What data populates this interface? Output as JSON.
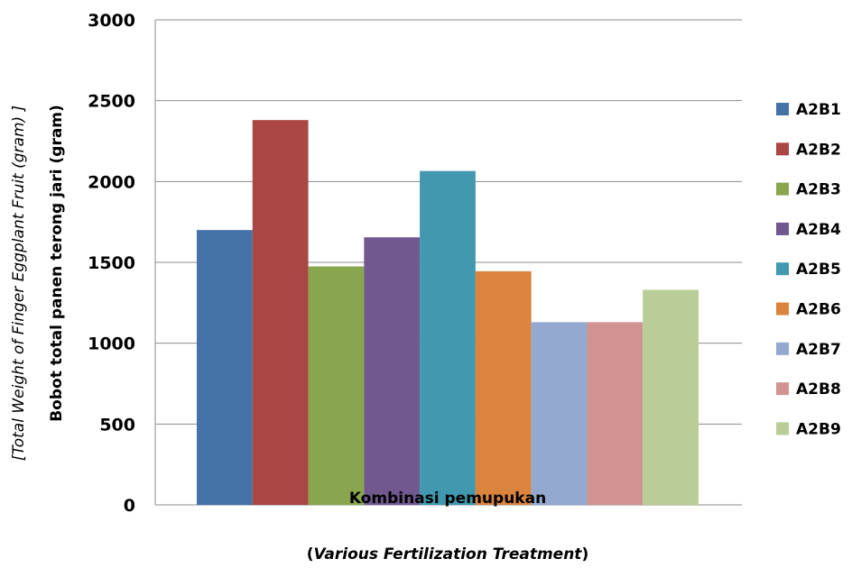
{
  "chart_data": {
    "type": "bar",
    "categories": [
      ""
    ],
    "series": [
      {
        "name": "A2B1",
        "values": [
          1700
        ],
        "color": "#4572A7"
      },
      {
        "name": "A2B2",
        "values": [
          2380
        ],
        "color": "#AA4643"
      },
      {
        "name": "A2B3",
        "values": [
          1475
        ],
        "color": "#89A54E"
      },
      {
        "name": "A2B4",
        "values": [
          1655
        ],
        "color": "#71588F"
      },
      {
        "name": "A2B5",
        "values": [
          2065
        ],
        "color": "#4198AF"
      },
      {
        "name": "A2B6",
        "values": [
          1445
        ],
        "color": "#DB843D"
      },
      {
        "name": "A2B7",
        "values": [
          1130
        ],
        "color": "#93A9CF"
      },
      {
        "name": "A2B8",
        "values": [
          1130
        ],
        "color": "#D19392"
      },
      {
        "name": "A2B9",
        "values": [
          1330
        ],
        "color": "#B9CD96"
      }
    ],
    "xlabel": "Kombinasi pemupukan",
    "xlabel_sub_prefix": "(",
    "xlabel_sub_italic": "Various Fertilization Treatment",
    "xlabel_sub_suffix": ")",
    "ylabel": "Bobot total panen terong jari (gram)",
    "ylabel_sub": "[Total Weight of Finger Eggplant Fruit (gram) ]",
    "ylim": [
      0,
      3000
    ],
    "yticks": [
      0,
      500,
      1000,
      1500,
      2000,
      2500,
      3000
    ],
    "grid": true,
    "legend_position": "right"
  }
}
